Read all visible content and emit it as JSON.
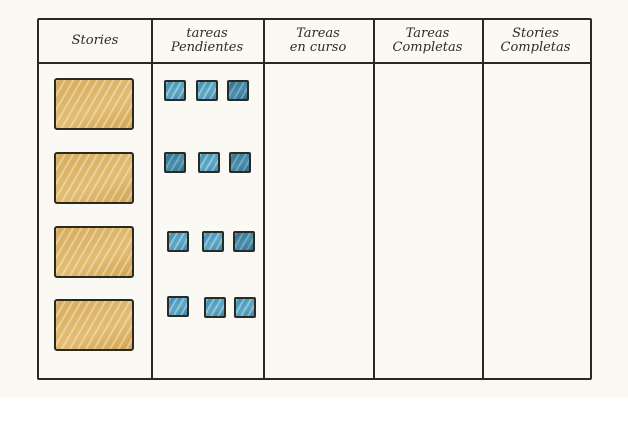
{
  "columns": {
    "stories": {
      "line1": "Stories",
      "line2": ""
    },
    "pendientes": {
      "line1": "tareas",
      "line2": "Pendientes"
    },
    "en_curso": {
      "line1": "Tareas",
      "line2": "en curso"
    },
    "completas": {
      "line1": "Tareas",
      "line2": "Completas"
    },
    "stories_completas": {
      "line1": "Stories",
      "line2": "Completas"
    }
  },
  "colors": {
    "line": "#2c2a1f",
    "story_fill": "#dfb86c",
    "task_fill": "#4e9cbd",
    "paper": "#fbf9f3"
  },
  "story_count": 4,
  "tasks_per_story": 3
}
